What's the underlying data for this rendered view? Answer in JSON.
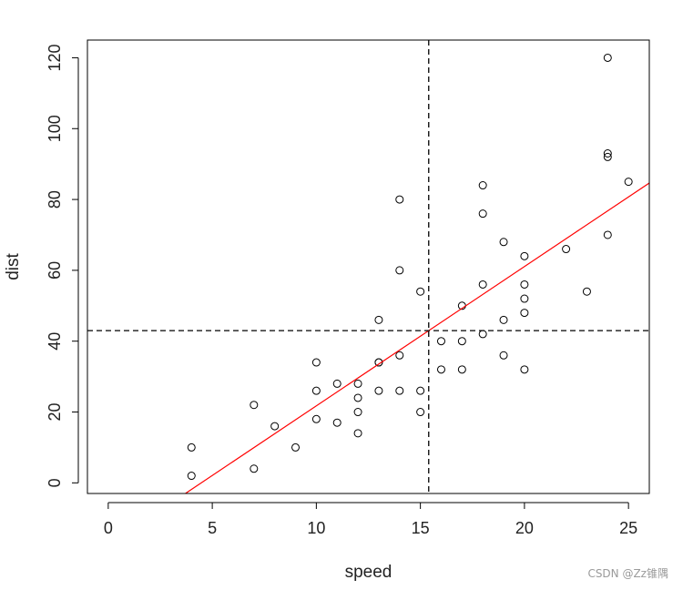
{
  "chart_data": {
    "type": "scatter",
    "xlabel": "speed",
    "ylabel": "dist",
    "xlim": [
      -1.0,
      26.0
    ],
    "ylim": [
      -3.0,
      125.0
    ],
    "x_ticks": [
      0,
      5,
      10,
      15,
      20,
      25
    ],
    "y_ticks": [
      0,
      20,
      40,
      60,
      80,
      100,
      120
    ],
    "points": [
      [
        4,
        2
      ],
      [
        4,
        10
      ],
      [
        7,
        4
      ],
      [
        7,
        22
      ],
      [
        8,
        16
      ],
      [
        9,
        10
      ],
      [
        10,
        18
      ],
      [
        10,
        26
      ],
      [
        10,
        34
      ],
      [
        11,
        17
      ],
      [
        11,
        28
      ],
      [
        12,
        14
      ],
      [
        12,
        20
      ],
      [
        12,
        24
      ],
      [
        12,
        28
      ],
      [
        13,
        26
      ],
      [
        13,
        34
      ],
      [
        13,
        34
      ],
      [
        13,
        46
      ],
      [
        14,
        26
      ],
      [
        14,
        36
      ],
      [
        14,
        60
      ],
      [
        14,
        80
      ],
      [
        15,
        20
      ],
      [
        15,
        26
      ],
      [
        15,
        54
      ],
      [
        16,
        32
      ],
      [
        16,
        40
      ],
      [
        17,
        32
      ],
      [
        17,
        40
      ],
      [
        17,
        50
      ],
      [
        18,
        42
      ],
      [
        18,
        56
      ],
      [
        18,
        76
      ],
      [
        18,
        84
      ],
      [
        19,
        36
      ],
      [
        19,
        46
      ],
      [
        19,
        68
      ],
      [
        20,
        32
      ],
      [
        20,
        48
      ],
      [
        20,
        52
      ],
      [
        20,
        56
      ],
      [
        20,
        64
      ],
      [
        22,
        66
      ],
      [
        23,
        54
      ],
      [
        24,
        70
      ],
      [
        24,
        92
      ],
      [
        24,
        93
      ],
      [
        24,
        120
      ],
      [
        25,
        85
      ]
    ],
    "regression_line": {
      "intercept": -17.579,
      "slope": 3.932,
      "color": "#ff0000"
    },
    "mean_x": 15.4,
    "mean_y": 42.98,
    "reference_line_color": "#000000",
    "grid": false
  },
  "watermark": "CSDN @Zz锥隅"
}
